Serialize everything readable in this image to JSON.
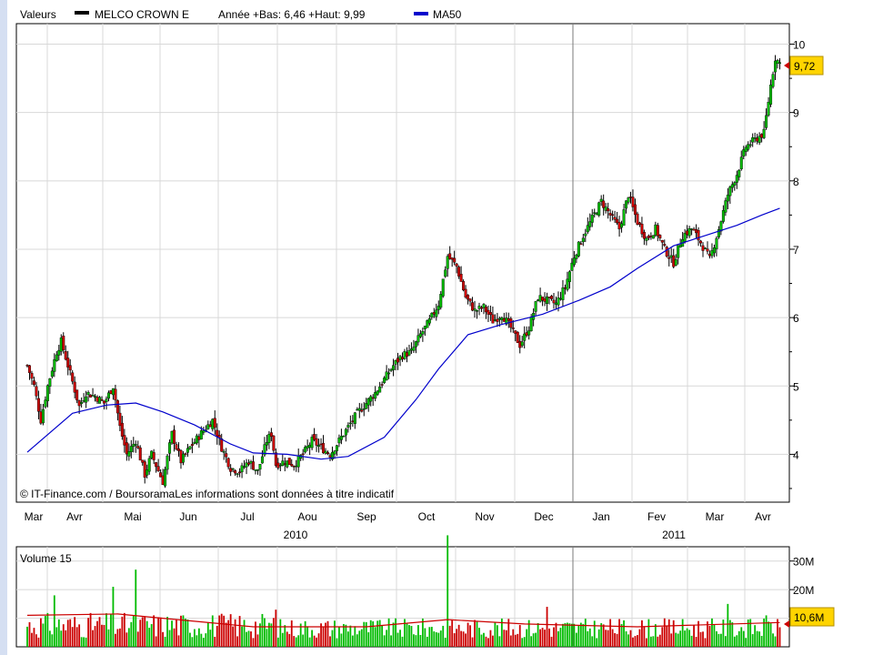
{
  "header": {
    "label": "Valeurs",
    "series_name": "MELCO CROWN E",
    "stats": "Année +Bas: 6,46 +Haut: 9,99",
    "ma_label": "MA50"
  },
  "copyright": "© IT-Finance.com / BoursoramaLes informations sont données à titre indicatif",
  "volume_panel": {
    "title": "Volume 15",
    "y_ticks": [
      "30M",
      "20M",
      "10M"
    ],
    "last_badge": "10,6M",
    "last_value": 10.6
  },
  "price_panel": {
    "y_ticks": [
      "10",
      "9",
      "8",
      "7",
      "6",
      "5",
      "4"
    ],
    "last_badge": "9,72",
    "last_value": 9.72
  },
  "x_axis": {
    "months": [
      "Mar",
      "Avr",
      "Mai",
      "Jun",
      "Jul",
      "Aou",
      "Sep",
      "Oct",
      "Nov",
      "Dec",
      "Jan",
      "Fev",
      "Mar",
      "Avr"
    ],
    "years": [
      "2010",
      "2011"
    ]
  },
  "colors": {
    "up": "#00bb00",
    "down": "#cc0000",
    "ma": "#0000cc",
    "volume_ma": "#cc0000",
    "badge": "#ffd400",
    "grid": "#d8d8d8"
  },
  "chart_data": [
    {
      "type": "candlestick",
      "title": "MELCO CROWN E",
      "ylim": [
        3.3,
        10.3
      ],
      "yticks": [
        4,
        5,
        6,
        7,
        8,
        9,
        10
      ],
      "grid": true,
      "series": [
        {
          "name": "MELCO CROWN E",
          "anchors": [
            [
              0,
              5.3
            ],
            [
              3,
              5.0
            ],
            [
              6,
              4.5
            ],
            [
              9,
              5.0
            ],
            [
              13,
              5.5
            ],
            [
              15,
              5.65
            ],
            [
              18,
              5.3
            ],
            [
              23,
              4.7
            ],
            [
              26,
              4.9
            ],
            [
              30,
              4.85
            ],
            [
              34,
              4.75
            ],
            [
              38,
              5.0
            ],
            [
              41,
              4.4
            ],
            [
              44,
              4.0
            ],
            [
              48,
              4.2
            ],
            [
              52,
              3.7
            ],
            [
              55,
              4.0
            ],
            [
              60,
              3.6
            ],
            [
              64,
              4.3
            ],
            [
              68,
              3.9
            ],
            [
              72,
              4.1
            ],
            [
              78,
              4.35
            ],
            [
              82,
              4.5
            ],
            [
              86,
              4.1
            ],
            [
              90,
              3.8
            ],
            [
              94,
              3.75
            ],
            [
              98,
              3.9
            ],
            [
              102,
              3.75
            ],
            [
              106,
              4.2
            ],
            [
              108,
              4.3
            ],
            [
              110,
              3.85
            ],
            [
              114,
              3.9
            ],
            [
              118,
              3.85
            ],
            [
              122,
              4.0
            ],
            [
              126,
              4.2
            ],
            [
              130,
              4.1
            ],
            [
              134,
              4.0
            ],
            [
              138,
              4.2
            ],
            [
              142,
              4.4
            ],
            [
              146,
              4.6
            ],
            [
              150,
              4.75
            ],
            [
              154,
              4.9
            ],
            [
              158,
              5.1
            ],
            [
              162,
              5.3
            ],
            [
              166,
              5.45
            ],
            [
              170,
              5.5
            ],
            [
              174,
              5.75
            ],
            [
              178,
              5.95
            ],
            [
              182,
              6.2
            ],
            [
              186,
              6.9
            ],
            [
              190,
              6.75
            ],
            [
              194,
              6.3
            ],
            [
              198,
              6.1
            ],
            [
              202,
              6.15
            ],
            [
              206,
              5.95
            ],
            [
              210,
              6.05
            ],
            [
              214,
              5.85
            ],
            [
              218,
              5.6
            ],
            [
              222,
              5.85
            ],
            [
              226,
              6.3
            ],
            [
              230,
              6.25
            ],
            [
              234,
              6.2
            ],
            [
              238,
              6.45
            ],
            [
              242,
              6.9
            ],
            [
              246,
              7.2
            ],
            [
              250,
              7.45
            ],
            [
              254,
              7.7
            ],
            [
              258,
              7.5
            ],
            [
              262,
              7.3
            ],
            [
              266,
              7.8
            ],
            [
              270,
              7.4
            ],
            [
              274,
              7.15
            ],
            [
              278,
              7.3
            ],
            [
              282,
              7.0
            ],
            [
              286,
              6.8
            ],
            [
              290,
              7.2
            ],
            [
              294,
              7.3
            ],
            [
              298,
              7.1
            ],
            [
              302,
              6.85
            ],
            [
              306,
              7.3
            ],
            [
              310,
              7.8
            ],
            [
              314,
              8.1
            ],
            [
              318,
              8.5
            ],
            [
              322,
              8.6
            ],
            [
              326,
              8.7
            ],
            [
              329,
              9.4
            ],
            [
              331,
              9.8
            ],
            [
              333,
              9.72
            ]
          ]
        },
        {
          "name": "MA50",
          "points": [
            [
              0,
              4.03
            ],
            [
              20,
              4.6
            ],
            [
              35,
              4.72
            ],
            [
              48,
              4.75
            ],
            [
              60,
              4.62
            ],
            [
              74,
              4.43
            ],
            [
              90,
              4.15
            ],
            [
              100,
              4.02
            ],
            [
              115,
              4.0
            ],
            [
              130,
              3.93
            ],
            [
              142,
              3.97
            ],
            [
              158,
              4.25
            ],
            [
              172,
              4.8
            ],
            [
              182,
              5.25
            ],
            [
              195,
              5.75
            ],
            [
              210,
              5.9
            ],
            [
              228,
              6.05
            ],
            [
              244,
              6.25
            ],
            [
              258,
              6.45
            ],
            [
              270,
              6.72
            ],
            [
              286,
              7.05
            ],
            [
              300,
              7.2
            ],
            [
              314,
              7.35
            ],
            [
              325,
              7.5
            ],
            [
              333,
              7.6
            ]
          ]
        }
      ]
    },
    {
      "type": "bar",
      "title": "Volume 15",
      "ylim": [
        0,
        35
      ],
      "yticks": [
        10,
        20,
        30
      ],
      "series": [
        {
          "name": "Volume",
          "spikes": [
            [
              12,
              18
            ],
            [
              38,
              21
            ],
            [
              48,
              27
            ],
            [
              110,
              13
            ],
            [
              186,
              39
            ],
            [
              230,
              14
            ],
            [
              310,
              15
            ],
            [
              327,
              11
            ]
          ]
        },
        {
          "name": "Volume MA",
          "points": [
            [
              0,
              11
            ],
            [
              40,
              11.5
            ],
            [
              60,
              10
            ],
            [
              100,
              7
            ],
            [
              150,
              7
            ],
            [
              186,
              9.5
            ],
            [
              220,
              8
            ],
            [
              270,
              7
            ],
            [
              333,
              8.5
            ]
          ]
        }
      ]
    }
  ]
}
